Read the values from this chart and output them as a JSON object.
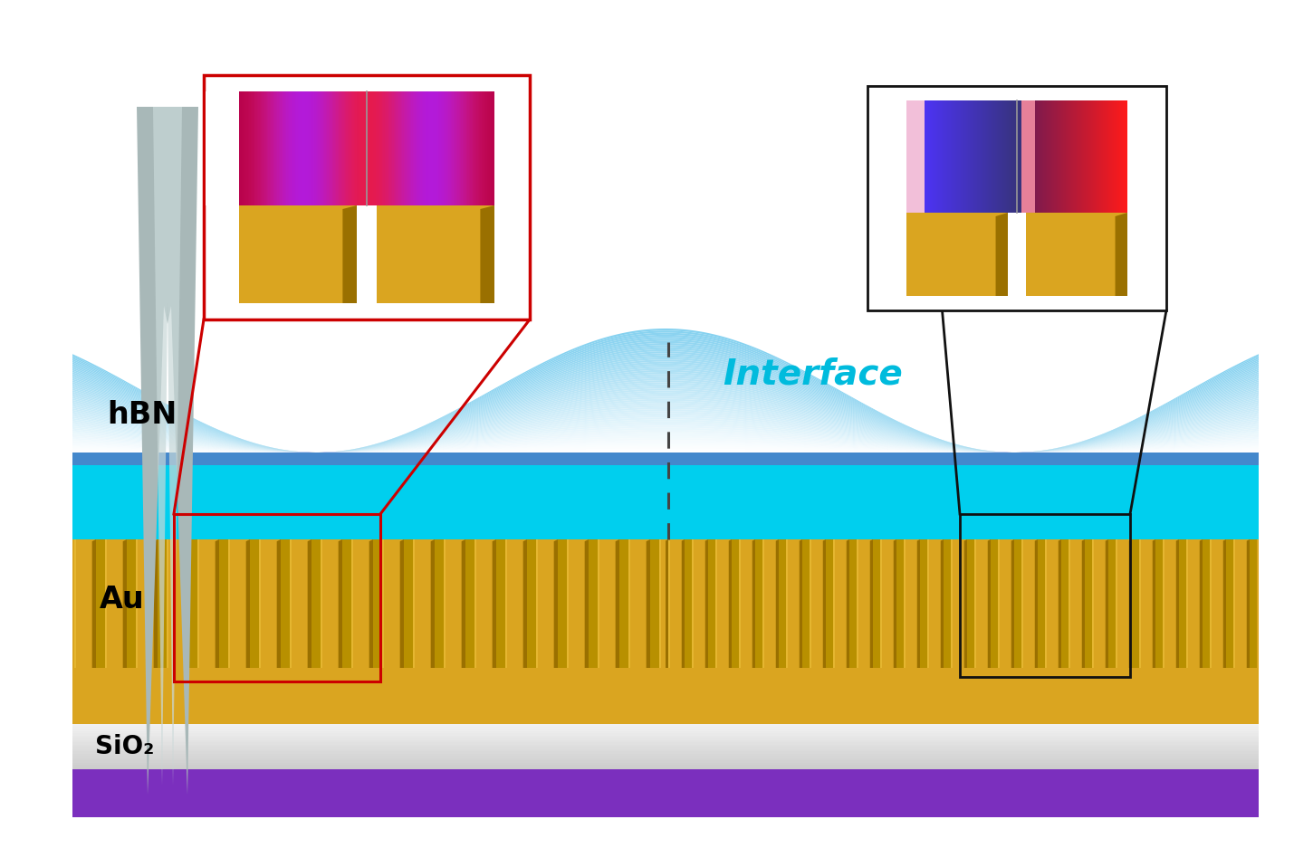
{
  "fig_width": 14.5,
  "fig_height": 9.58,
  "bg_color": "#ffffff",
  "au_color": "#DAA520",
  "au_dark_color": "#B8860B",
  "au_light_color": "#F0C040",
  "sio2_color": "#D0D0D0",
  "sio2_light_color": "#E8E8E8",
  "substrate_color": "#7B2FBE",
  "grating_color": "#DAA520",
  "grating_dark_color": "#9A7000",
  "grating_light_color": "#F0C840",
  "red_box_color": "#CC0000",
  "black_box_color": "#111111",
  "interface_text": "Interface",
  "hbn_text": "hBN",
  "au_text": "Au",
  "sio2_text": "SiO₂",
  "text_color": "#000000",
  "interface_text_color": "#00BBDD",
  "hbn_flat_color": "#00CFEE",
  "hbn_upper_color": "#60B8F0",
  "hbn_dome_color": "#87CEEB",
  "hbn_dark_band": "#4488CC"
}
